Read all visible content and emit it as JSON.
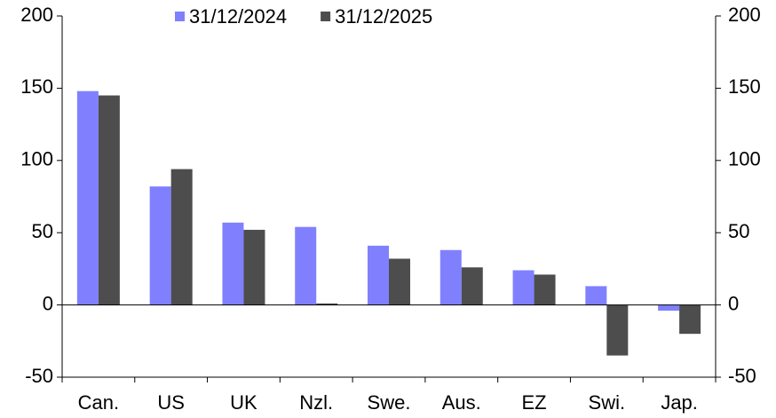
{
  "chart_data": {
    "type": "bar",
    "categories": [
      "Can.",
      "US",
      "UK",
      "Nzl.",
      "Swe.",
      "Aus.",
      "EZ",
      "Swi.",
      "Jap."
    ],
    "series": [
      {
        "name": "31/12/2024",
        "color": "#8080ff",
        "values": [
          148,
          82,
          57,
          54,
          41,
          38,
          24,
          13,
          -4
        ]
      },
      {
        "name": "31/12/2025",
        "color": "#4d4d4d",
        "values": [
          145,
          94,
          52,
          1,
          32,
          26,
          21,
          -35,
          -20
        ]
      }
    ],
    "ylim": [
      -50,
      200
    ],
    "yticks": [
      -50,
      0,
      50,
      100,
      150,
      200
    ],
    "y2lim": [
      -50,
      200
    ],
    "y2ticks": [
      -50,
      0,
      50,
      100,
      150,
      200
    ],
    "legend": "top"
  }
}
